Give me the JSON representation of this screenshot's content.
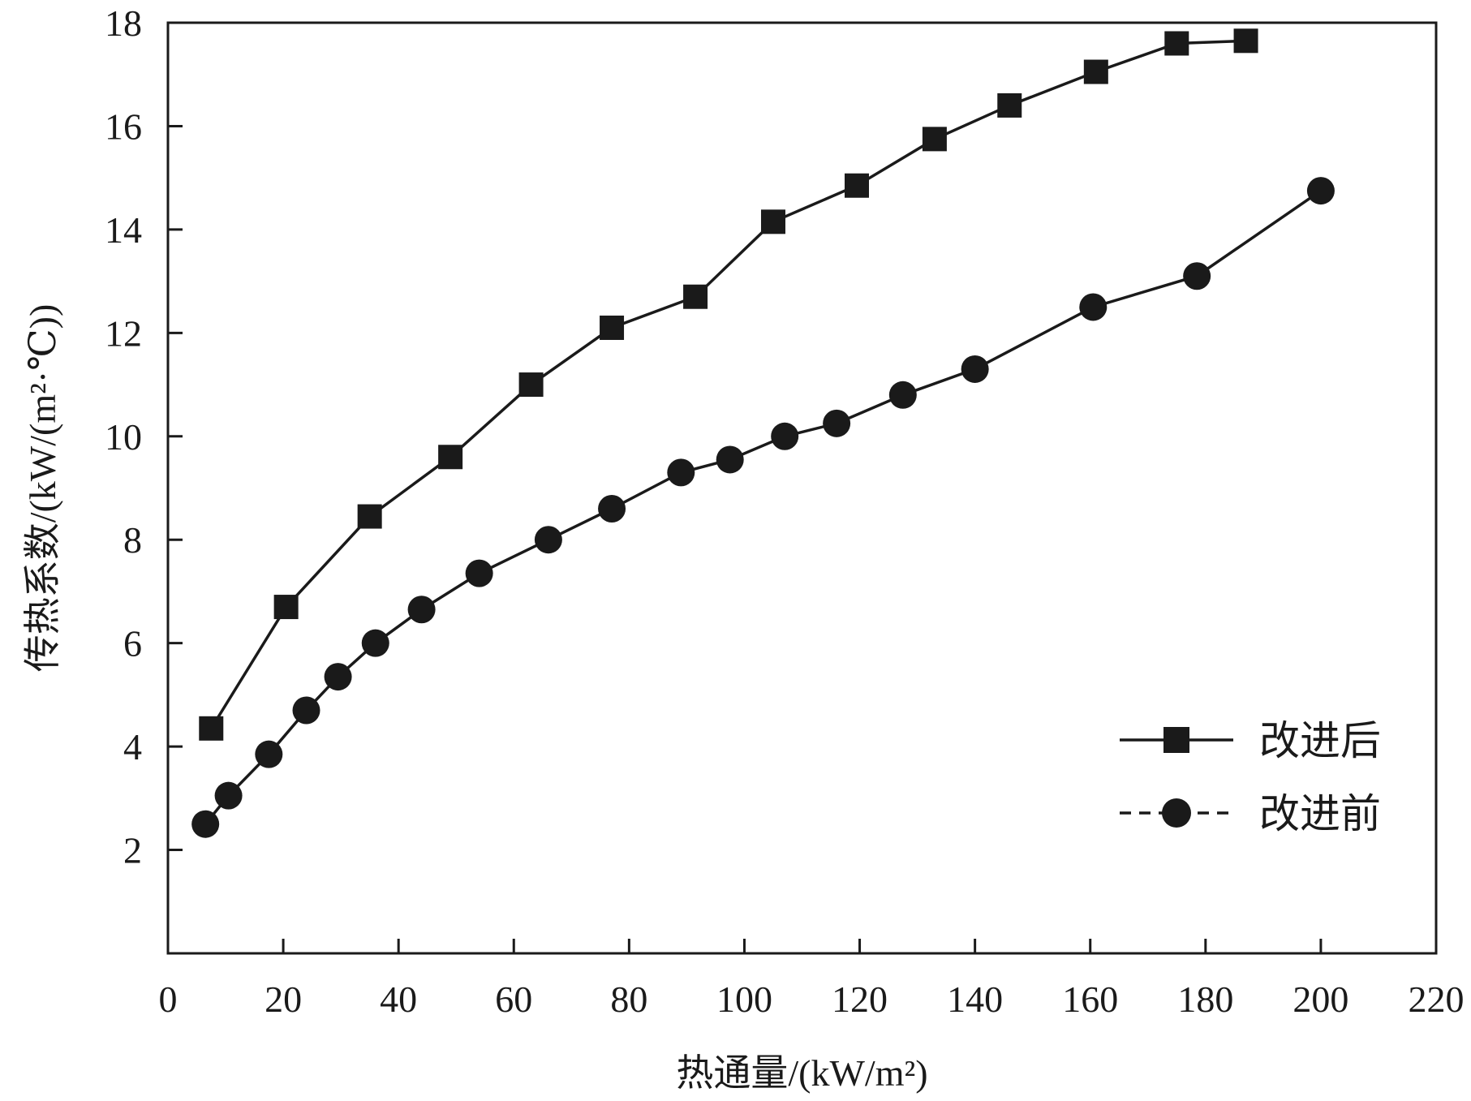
{
  "chart_data": {
    "type": "line",
    "title": "",
    "xlabel": "热通量/(kW/m²)",
    "ylabel": "传热系数/(kW/(m²·℃))",
    "xlim": [
      0,
      220
    ],
    "ylim": [
      0,
      18
    ],
    "x_ticks": [
      0,
      20,
      40,
      60,
      80,
      100,
      120,
      140,
      160,
      180,
      200,
      220
    ],
    "y_ticks": [
      2,
      4,
      6,
      8,
      10,
      12,
      14,
      16,
      18
    ],
    "x_tick_labels": [
      "0",
      "20",
      "40",
      "60",
      "80",
      "100",
      "120",
      "140",
      "160",
      "180",
      "200",
      "220"
    ],
    "y_tick_labels": [
      "2",
      "4",
      "6",
      "8",
      "10",
      "12",
      "14",
      "16",
      "18"
    ],
    "grid": false,
    "legend_position": "bottom-right",
    "color": "#1a1a1a",
    "series": [
      {
        "name": "改进后",
        "marker": "square",
        "line_style": "solid",
        "points": [
          [
            7.5,
            4.35
          ],
          [
            20.5,
            6.7
          ],
          [
            35,
            8.45
          ],
          [
            49,
            9.6
          ],
          [
            63,
            11.0
          ],
          [
            77,
            12.1
          ],
          [
            91.5,
            12.7
          ],
          [
            105,
            14.15
          ],
          [
            119.5,
            14.85
          ],
          [
            133,
            15.75
          ],
          [
            146,
            16.4
          ],
          [
            161,
            17.05
          ],
          [
            175,
            17.6
          ],
          [
            187,
            17.65
          ]
        ]
      },
      {
        "name": "改进前",
        "marker": "circle",
        "line_style": "dashed",
        "points": [
          [
            6.5,
            2.5
          ],
          [
            10.5,
            3.05
          ],
          [
            17.5,
            3.85
          ],
          [
            24,
            4.7
          ],
          [
            29.5,
            5.35
          ],
          [
            36,
            6.0
          ],
          [
            44,
            6.65
          ],
          [
            54,
            7.35
          ],
          [
            66,
            8.0
          ],
          [
            77,
            8.6
          ],
          [
            89,
            9.3
          ],
          [
            97.5,
            9.55
          ],
          [
            107,
            10.0
          ],
          [
            116,
            10.25
          ],
          [
            127.5,
            10.8
          ],
          [
            140,
            11.3
          ],
          [
            160.5,
            12.5
          ],
          [
            178.5,
            13.1
          ],
          [
            200,
            14.75
          ]
        ]
      }
    ]
  }
}
